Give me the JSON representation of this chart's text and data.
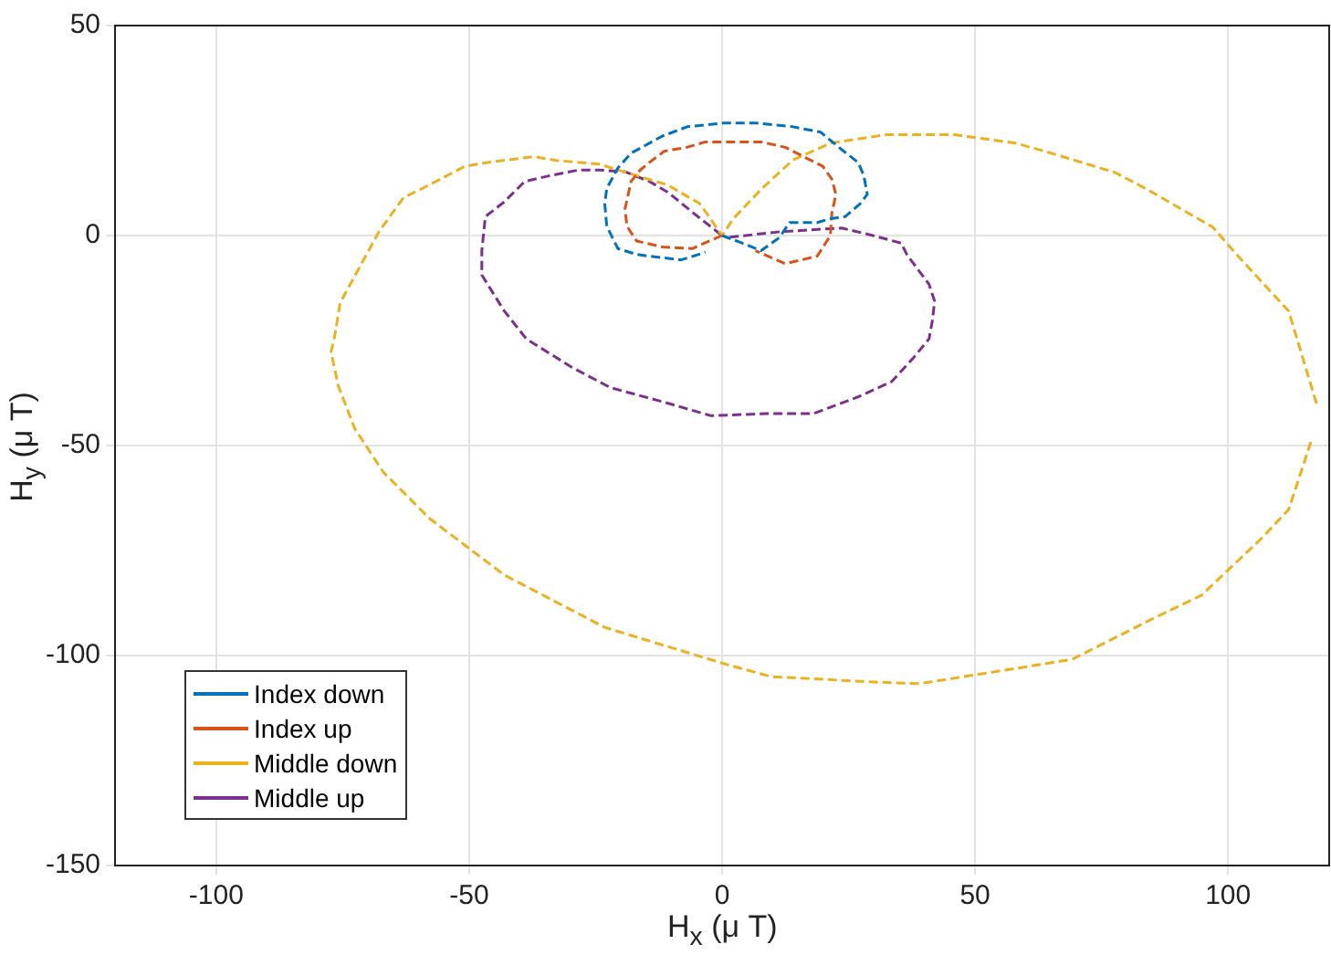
{
  "chart_data": {
    "type": "line",
    "xlabel": "H$_{x}$ (μ T)",
    "ylabel": "H$_{y}$ (μ T)",
    "xlim": [
      -120,
      120
    ],
    "ylim": [
      -150,
      50
    ],
    "xticks": [
      -100,
      -50,
      0,
      50,
      100
    ],
    "yticks": [
      -150,
      -100,
      -50,
      0,
      50
    ],
    "grid": true,
    "legend": "bottom left",
    "marker": "none",
    "line_style": "dashed",
    "series": [
      {
        "name": "Index down",
        "color": "#0072bd",
        "x": [
          0,
          2.9,
          7.7,
          11.4,
          13.3,
          18.8,
          21.4,
          24.3,
          27.3,
          28.7,
          28,
          26.9,
          23.6,
          19.5,
          14,
          6.6,
          0.4,
          -6.9,
          -11.8,
          -18,
          -20.6,
          -22.8,
          -23.2,
          -22.8,
          -20.6,
          -16.9,
          -14.4,
          -8.1,
          -3.3
        ],
        "values": [
          0,
          -1.3,
          -3.6,
          -0.4,
          3.1,
          3.1,
          4,
          4.5,
          7.6,
          9.8,
          14.3,
          17.4,
          20.5,
          24.6,
          25.9,
          26.8,
          26.8,
          25.9,
          23.7,
          19.6,
          16.1,
          11.2,
          7.6,
          2.2,
          -3.1,
          -4.5,
          -4.9,
          -5.8,
          -4
        ]
      },
      {
        "name": "Index up",
        "color": "#d95319",
        "x": [
          0,
          -5.9,
          -11.8,
          -16.9,
          -18.8,
          -19.2,
          -18,
          -16.2,
          -14.4,
          -11.4,
          -7,
          -3.3,
          1.1,
          7.7,
          12.5,
          16.9,
          19.9,
          21.7,
          22.5,
          21.7,
          21.4,
          18.8,
          12.5,
          6.6
        ],
        "values": [
          0,
          -3.1,
          -2.7,
          -1.3,
          2.2,
          6.3,
          12.9,
          15.6,
          17.4,
          20.1,
          21,
          22.3,
          22.3,
          22.3,
          21,
          18.3,
          16.5,
          13.4,
          9.8,
          5.4,
          0,
          -4.9,
          -6.7,
          -3.6
        ]
      },
      {
        "name": "Middle down",
        "color": "#edb120",
        "x": [
          117.5,
          112,
          101.7,
          97,
          84,
          77.7,
          64,
          58,
          46,
          32.4,
          21.4,
          14,
          7.7,
          2.2,
          0,
          -4.4,
          -10.7,
          -18,
          -24.3,
          -32.8,
          -37.2,
          -46.4,
          -50.8,
          -59.3,
          -63,
          -67.8,
          -75.5,
          -76.6,
          -77.3,
          -75.9,
          -72.6,
          -67,
          -57.8,
          -43.1,
          -23.2,
          1.1,
          9.6,
          29.8,
          39,
          60,
          69.2,
          86.2,
          94.7,
          106.8,
          112,
          116.4
        ],
        "values": [
          -40,
          -18,
          -4.5,
          2,
          11,
          15,
          20,
          22,
          24,
          24,
          22,
          18,
          11,
          4,
          0,
          7.6,
          12,
          14.7,
          17,
          17.9,
          18.8,
          17.4,
          16.5,
          11.2,
          9,
          1,
          -16,
          -24,
          -27.7,
          -35.7,
          -46,
          -56.3,
          -67.4,
          -80.8,
          -93.3,
          -102.2,
          -105,
          -106.3,
          -106.7,
          -102.7,
          -100.9,
          -90.6,
          -85.7,
          -71.9,
          -65.2,
          -49.1
        ]
      },
      {
        "name": "Middle up",
        "color": "#7e2f8e",
        "x": [
          1.5,
          11.4,
          23.6,
          29.8,
          35.4,
          36.5,
          40.9,
          42,
          41.6,
          40.9,
          37.9,
          33.5,
          26.9,
          18,
          8.8,
          -2.2,
          -11.4,
          -22.1,
          -29.8,
          -38.7,
          -43.1,
          -47.5,
          -47.5,
          -46.8,
          -43.1,
          -39,
          -33.9,
          -28.4,
          -24.3,
          -19.2,
          -14.4,
          -10.7,
          -5.2,
          0
        ],
        "values": [
          -0.4,
          0.9,
          1.8,
          0,
          -1.8,
          -4.5,
          -11.6,
          -15.6,
          -20,
          -24.6,
          -29,
          -34.8,
          -38.4,
          -42.4,
          -42.4,
          -42.9,
          -39.7,
          -36.2,
          -31.3,
          -24.6,
          -17.9,
          -9.4,
          -3.6,
          4.5,
          8,
          12.9,
          14.3,
          15.6,
          15.6,
          15.2,
          12.9,
          10.3,
          4.9,
          0
        ]
      }
    ]
  }
}
